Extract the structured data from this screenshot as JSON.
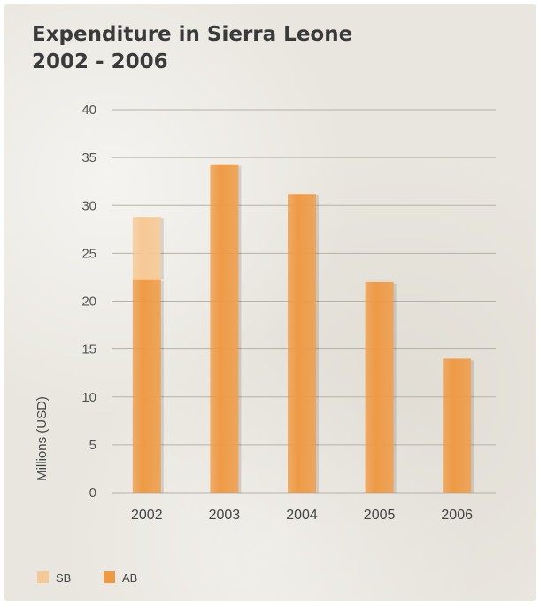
{
  "title_line1": "Expenditure in Sierra Leone",
  "title_line2": "2002 - 2006",
  "chart_data": {
    "type": "bar",
    "stacked": true,
    "categories": [
      "2002",
      "2003",
      "2004",
      "2005",
      "2006"
    ],
    "series": [
      {
        "name": "AB",
        "values": [
          22.3,
          34.3,
          31.2,
          22.0,
          14.0
        ],
        "color": "#ee9a45"
      },
      {
        "name": "SB",
        "values": [
          6.5,
          0,
          0,
          0,
          0
        ],
        "color": "#f6c894"
      }
    ],
    "ylabel": "Millions (USD)",
    "xlabel": "",
    "ylim": [
      0,
      40
    ],
    "yticks": [
      0,
      5,
      10,
      15,
      20,
      25,
      30,
      35,
      40
    ],
    "grid": true,
    "legend_position": "bottom-left",
    "legend": [
      {
        "name": "SB",
        "color": "#f6c894"
      },
      {
        "name": "AB",
        "color": "#ee9a45"
      }
    ]
  }
}
